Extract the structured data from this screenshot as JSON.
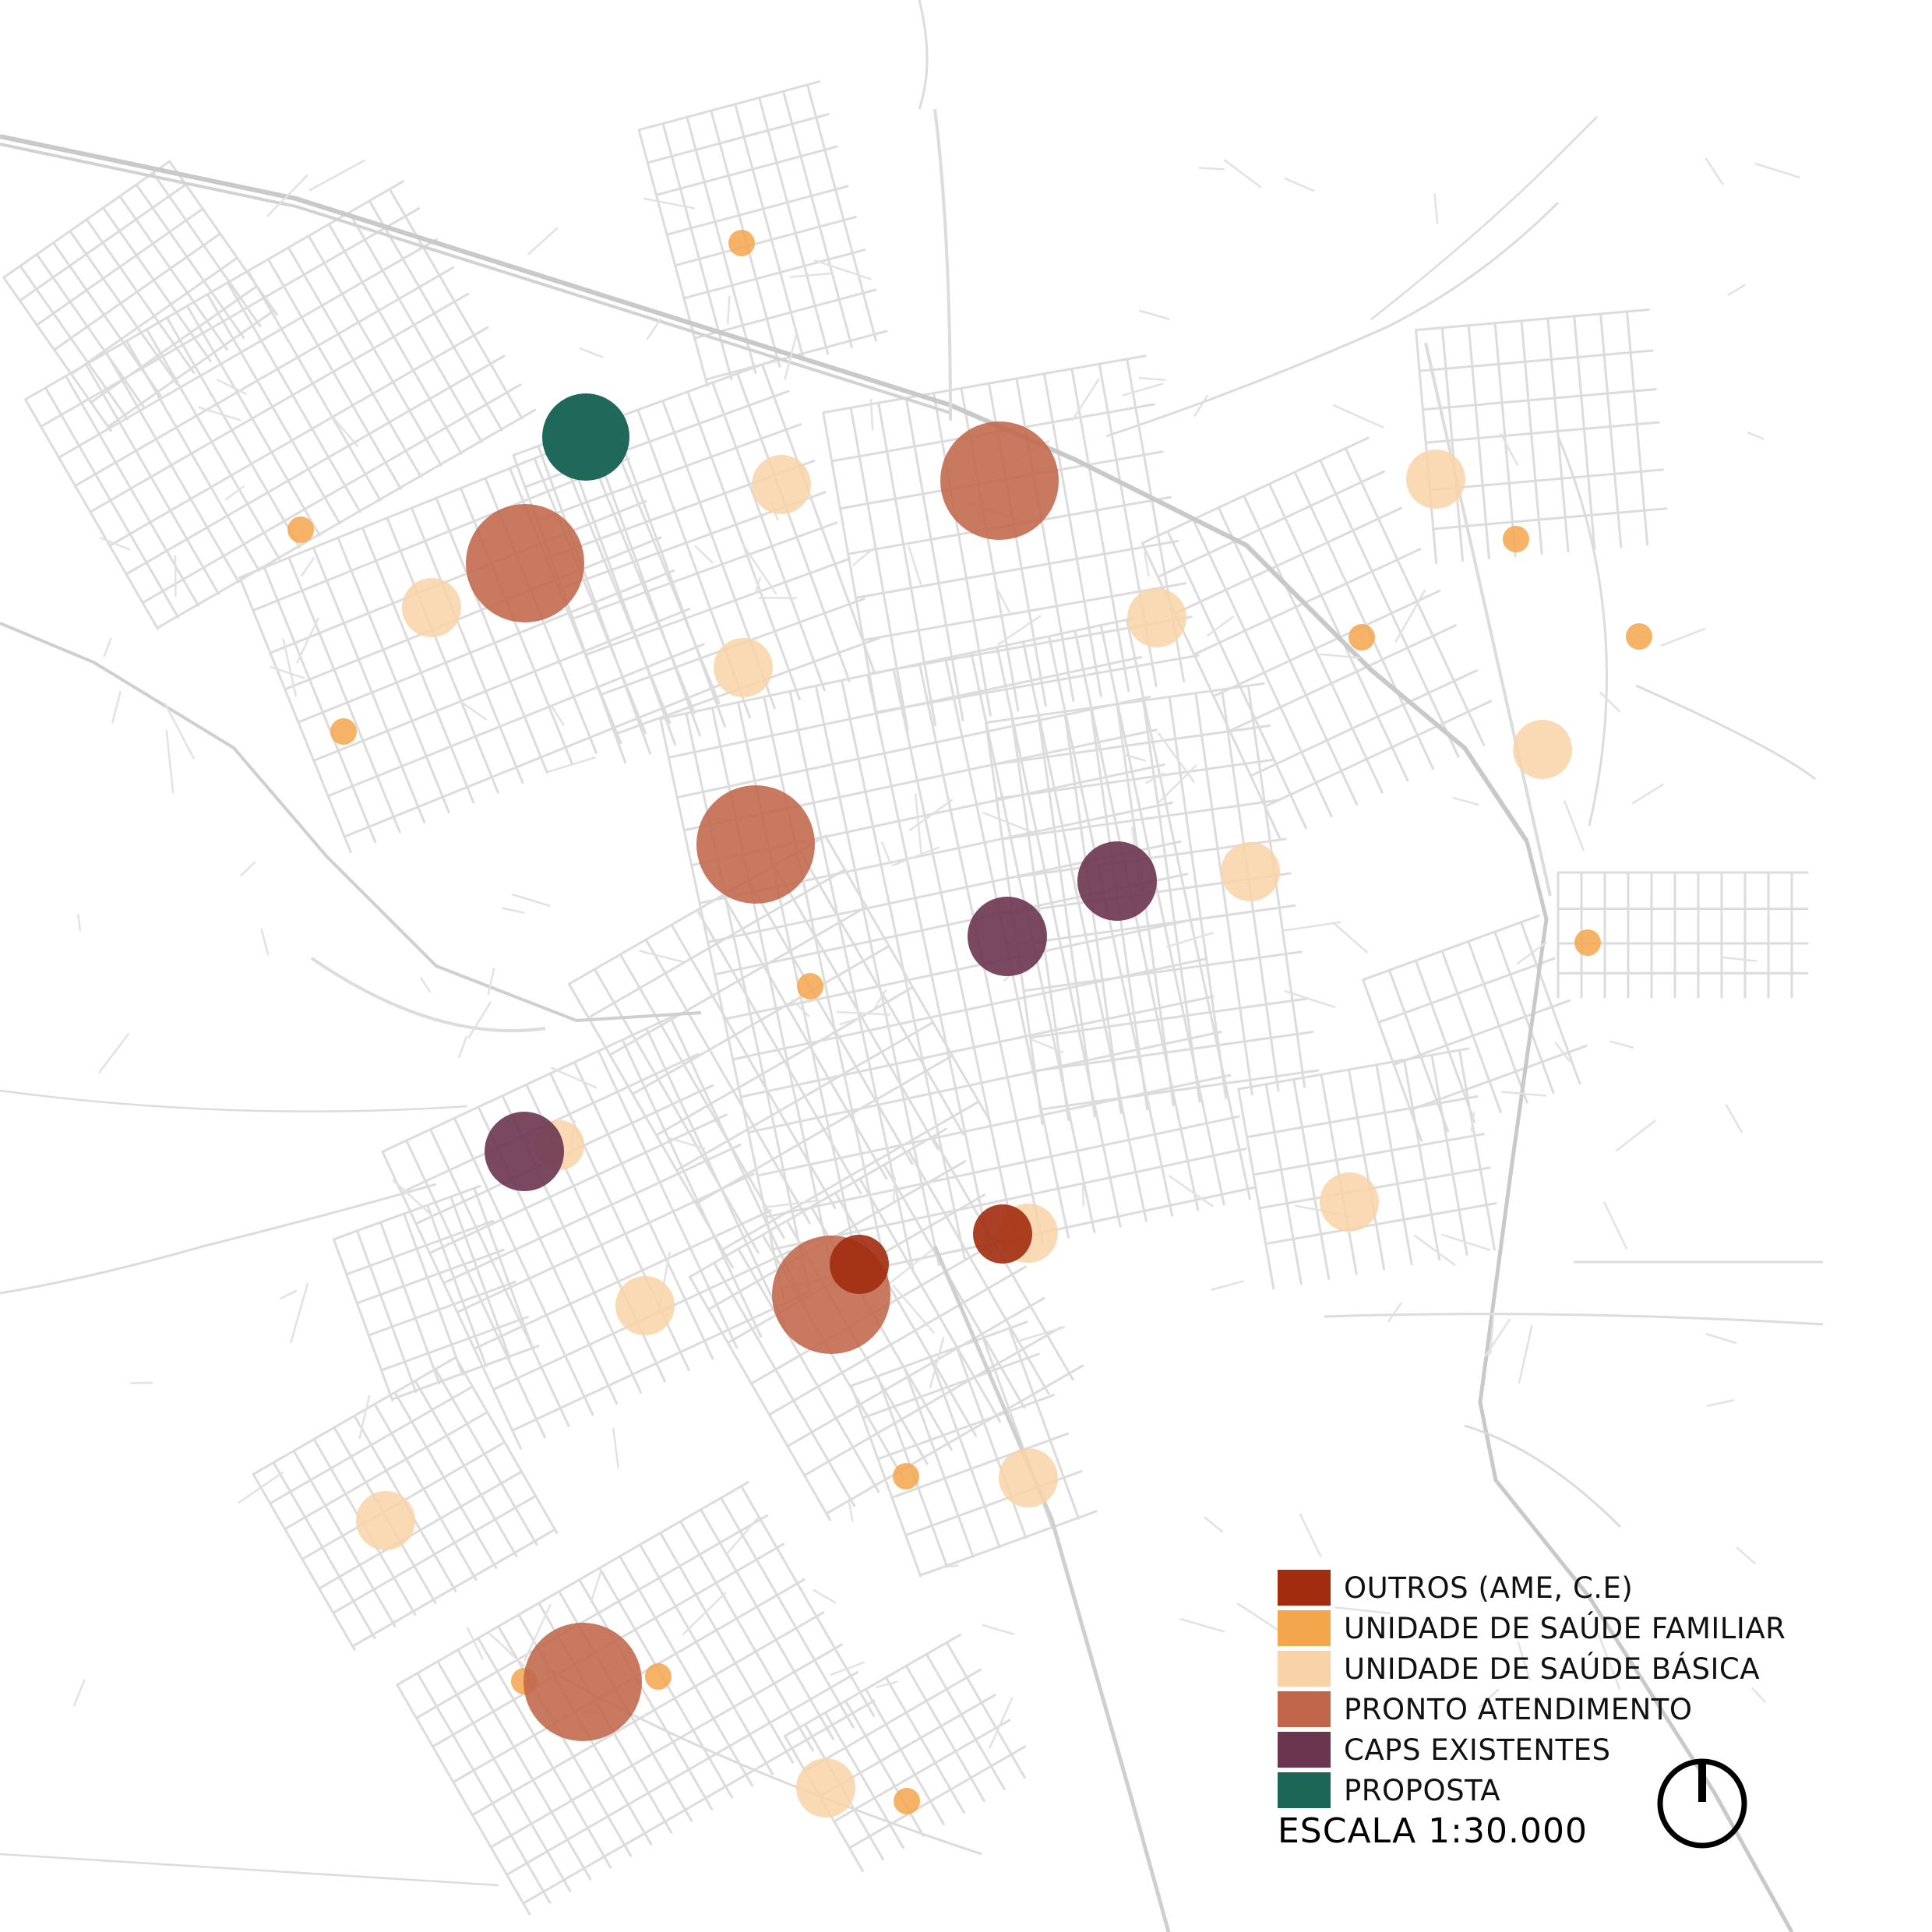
{
  "legend": {
    "items": [
      {
        "key": "outros",
        "label": "OUTROS (AME, C.E)",
        "color": "#a12c0e"
      },
      {
        "key": "usf",
        "label": "UNIDADE DE SAÚDE FAMILIAR",
        "color": "#f4a64c"
      },
      {
        "key": "usb",
        "label": "UNIDADE DE  SAÚDE BÁSICA",
        "color": "#f9d3a8"
      },
      {
        "key": "pa",
        "label": "PRONTO ATENDIMENTO",
        "color": "#c0664a"
      },
      {
        "key": "caps",
        "label": "CAPS EXISTENTES",
        "color": "#6b3550"
      },
      {
        "key": "proposta",
        "label": "PROPOSTA",
        "color": "#1c6657"
      }
    ]
  },
  "scale": {
    "label": "ESCALA 1:30.000"
  },
  "north_arrow": {
    "icon": "north-arrow-icon"
  },
  "colors": {
    "background": "#ffffff",
    "street": "#dcdcdc",
    "rail": "#cfcfcf"
  }
}
